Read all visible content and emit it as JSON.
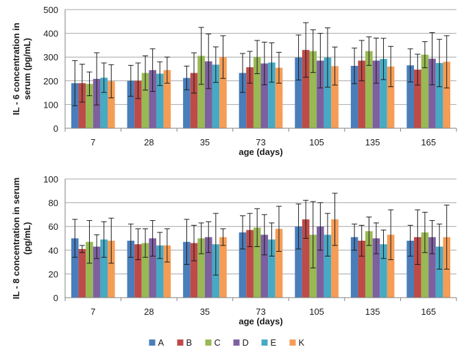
{
  "colors": {
    "A": "#4a7ebb",
    "B": "#be4b48",
    "C": "#98b954",
    "D": "#7d60a0",
    "E": "#46aac5",
    "K": "#f59d56",
    "grid": "#a6a6a6",
    "axis": "#808080",
    "error": "#1a1a1a"
  },
  "legend": [
    "A",
    "B",
    "C",
    "D",
    "E",
    "K"
  ],
  "chart_data": [
    {
      "type": "bar",
      "title": "",
      "xlabel": "age (days)",
      "ylabel_lines": [
        "IL - 6 concentration in",
        "serum (pg/mL)"
      ],
      "ylim": [
        0,
        500
      ],
      "yticks": [
        0,
        100,
        200,
        300,
        400,
        500
      ],
      "grid": true,
      "categories": [
        "7",
        "28",
        "35",
        "73",
        "105",
        "135",
        "165"
      ],
      "series": [
        {
          "name": "A",
          "values": [
            190,
            200,
            212,
            233,
            298,
            263,
            265
          ],
          "errors": [
            95,
            65,
            50,
            82,
            95,
            75,
            70
          ]
        },
        {
          "name": "B",
          "values": [
            190,
            200,
            233,
            257,
            330,
            285,
            247
          ],
          "errors": [
            80,
            75,
            85,
            67,
            115,
            85,
            65
          ]
        },
        {
          "name": "C",
          "values": [
            187,
            233,
            305,
            300,
            325,
            325,
            310
          ],
          "errors": [
            50,
            72,
            120,
            70,
            90,
            60,
            55
          ]
        },
        {
          "name": "D",
          "values": [
            208,
            245,
            282,
            273,
            285,
            285,
            293
          ],
          "errors": [
            110,
            90,
            115,
            90,
            115,
            95,
            110
          ]
        },
        {
          "name": "E",
          "values": [
            213,
            230,
            268,
            277,
            298,
            292,
            275
          ],
          "errors": [
            62,
            50,
            75,
            83,
            125,
            87,
            100
          ]
        },
        {
          "name": "K",
          "values": [
            198,
            245,
            300,
            255,
            262,
            260,
            280
          ],
          "errors": [
            70,
            55,
            90,
            65,
            80,
            85,
            110
          ]
        }
      ]
    },
    {
      "type": "bar",
      "title": "",
      "xlabel": "age (days)",
      "ylabel_lines": [
        "IL - 8 concentration in serum",
        "(pg/mL)"
      ],
      "ylim": [
        0,
        100
      ],
      "yticks": [
        0,
        20,
        40,
        60,
        80,
        100
      ],
      "grid": true,
      "categories": [
        "7",
        "28",
        "35",
        "73",
        "105",
        "135",
        "165"
      ],
      "series": [
        {
          "name": "A",
          "values": [
            50,
            48,
            47,
            55,
            60,
            51,
            48
          ],
          "errors": [
            16,
            14,
            19,
            14,
            19,
            11,
            13
          ]
        },
        {
          "name": "B",
          "values": [
            41,
            45,
            46,
            57,
            66,
            48,
            51
          ],
          "errors": [
            3,
            13,
            15,
            14,
            16,
            13,
            23
          ]
        },
        {
          "name": "C",
          "values": [
            47,
            46,
            50,
            59,
            53,
            56,
            55
          ],
          "errors": [
            18,
            12,
            13,
            16,
            28,
            12,
            17
          ]
        },
        {
          "name": "D",
          "values": [
            43,
            50,
            51,
            53,
            60,
            50,
            51
          ],
          "errors": [
            10,
            15,
            13,
            17,
            20,
            13,
            14
          ]
        },
        {
          "name": "E",
          "values": [
            49,
            44,
            45,
            49,
            53,
            45,
            43
          ],
          "errors": [
            15,
            11,
            26,
            14,
            18,
            12,
            19
          ]
        },
        {
          "name": "K",
          "values": [
            48,
            44,
            51,
            58,
            66,
            53,
            51
          ],
          "errors": [
            19,
            14,
            7,
            19,
            22,
            21,
            27
          ]
        }
      ]
    }
  ]
}
